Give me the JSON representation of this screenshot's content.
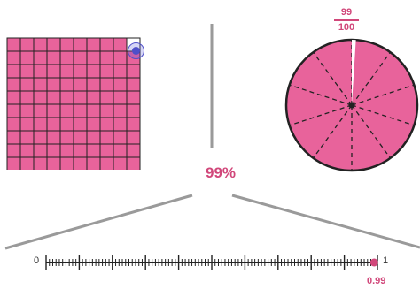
{
  "percent_label": "99%",
  "fraction": {
    "numerator": "99",
    "denominator": "100"
  },
  "decimal_label": "0.99",
  "number_line": {
    "start_label": "0",
    "end_label": "1",
    "value": 0.99
  },
  "grid": {
    "rows": 10,
    "cols": 10,
    "filled": 99
  },
  "pie": {
    "slices": 10
  },
  "colors": {
    "fill": "#e8639b",
    "accent": "#d1477a",
    "handle": "#4f4fc9",
    "line": "#222222",
    "connector": "#9a9a9a"
  },
  "icons": {
    "handle": "drag-handle-icon"
  }
}
